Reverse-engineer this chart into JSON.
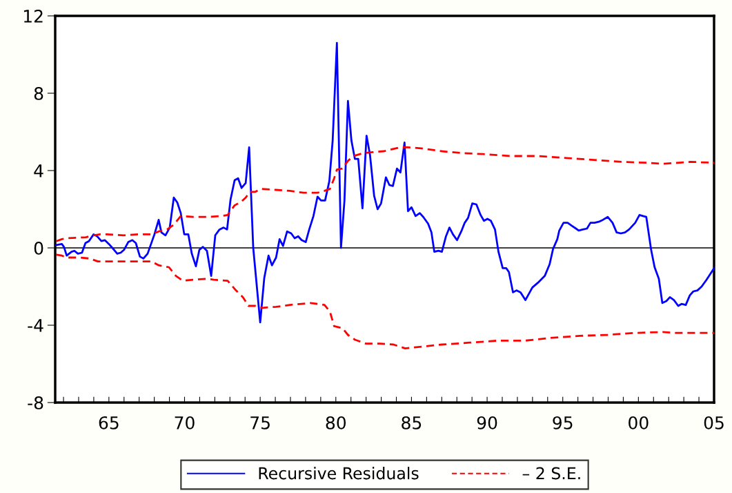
{
  "chart_data": {
    "type": "line",
    "xlim": [
      1961.45,
      2005.0
    ],
    "ylim": [
      -8,
      12
    ],
    "yticks": [
      {
        "value": -8,
        "label": "-8"
      },
      {
        "value": -4,
        "label": "-4"
      },
      0,
      4,
      8,
      12
    ],
    "xticks": [
      {
        "value": 1962,
        "label": null
      },
      {
        "value": 1963,
        "label": null
      },
      {
        "value": 1964,
        "label": null
      },
      {
        "value": 1965,
        "label": "65"
      },
      {
        "value": 1966,
        "label": null
      },
      {
        "value": 1967,
        "label": null
      },
      {
        "value": 1968,
        "label": null
      },
      {
        "value": 1969,
        "label": null
      },
      {
        "value": 1970,
        "label": "70"
      },
      {
        "value": 1971,
        "label": null
      },
      {
        "value": 1972,
        "label": null
      },
      {
        "value": 1973,
        "label": null
      },
      {
        "value": 1974,
        "label": null
      },
      {
        "value": 1975,
        "label": "75"
      },
      {
        "value": 1976,
        "label": null
      },
      {
        "value": 1977,
        "label": null
      },
      {
        "value": 1978,
        "label": null
      },
      {
        "value": 1979,
        "label": null
      },
      {
        "value": 1980,
        "label": "80"
      },
      {
        "value": 1981,
        "label": null
      },
      {
        "value": 1982,
        "label": null
      },
      {
        "value": 1983,
        "label": null
      },
      {
        "value": 1984,
        "label": null
      },
      {
        "value": 1985,
        "label": "85"
      },
      {
        "value": 1986,
        "label": null
      },
      {
        "value": 1987,
        "label": null
      },
      {
        "value": 1988,
        "label": null
      },
      {
        "value": 1989,
        "label": null
      },
      {
        "value": 1990,
        "label": "90"
      },
      {
        "value": 1991,
        "label": null
      },
      {
        "value": 1992,
        "label": null
      },
      {
        "value": 1993,
        "label": null
      },
      {
        "value": 1994,
        "label": null
      },
      {
        "value": 1995,
        "label": "95"
      },
      {
        "value": 1996,
        "label": null
      },
      {
        "value": 1997,
        "label": null
      },
      {
        "value": 1998,
        "label": null
      },
      {
        "value": 1999,
        "label": null
      },
      {
        "value": 2000,
        "label": "00"
      },
      {
        "value": 2001,
        "label": null
      },
      {
        "value": 2002,
        "label": null
      },
      {
        "value": 2003,
        "label": null
      },
      {
        "value": 2004,
        "label": null
      },
      {
        "value": 2005,
        "label": "05"
      }
    ],
    "grid": false,
    "legend": "bottom",
    "marker": "none",
    "ref_lines": [
      {
        "axis": "y",
        "value": 0,
        "color": "#000000",
        "line_style": "solid"
      }
    ],
    "series": [
      {
        "name": "Recursive Residuals",
        "color": "#0000ff",
        "line_style": "solid",
        "x": [
          1961.53,
          1961.89,
          1962.03,
          1962.21,
          1962.53,
          1962.72,
          1962.95,
          1963.22,
          1963.45,
          1963.68,
          1963.99,
          1964.22,
          1964.5,
          1964.73,
          1965.0,
          1965.23,
          1965.55,
          1965.78,
          1966.0,
          1966.28,
          1966.55,
          1966.78,
          1967.05,
          1967.28,
          1967.56,
          1968.01,
          1968.29,
          1968.47,
          1968.74,
          1969.02,
          1969.29,
          1969.52,
          1969.75,
          1969.98,
          1970.25,
          1970.48,
          1970.75,
          1970.98,
          1971.21,
          1971.48,
          1971.76,
          1972.03,
          1972.31,
          1972.58,
          1972.81,
          1973.04,
          1973.31,
          1973.54,
          1973.77,
          1974.04,
          1974.27,
          1974.54,
          1975.0,
          1975.27,
          1975.55,
          1975.78,
          1976.05,
          1976.28,
          1976.51,
          1976.78,
          1977.05,
          1977.28,
          1977.51,
          1977.74,
          1978.01,
          1978.24,
          1978.52,
          1978.79,
          1979.02,
          1979.29,
          1979.57,
          1979.79,
          1980.07,
          1980.34,
          1980.57,
          1980.8,
          1981.03,
          1981.26,
          1981.48,
          1981.76,
          1982.03,
          1982.26,
          1982.53,
          1982.76,
          1982.99,
          1983.31,
          1983.54,
          1983.77,
          1984.04,
          1984.27,
          1984.54,
          1984.77,
          1985.0,
          1985.27,
          1985.55,
          1985.78,
          1986.1,
          1986.32,
          1986.51,
          1986.78,
          1987.01,
          1987.28,
          1987.51,
          1987.74,
          1988.01,
          1988.29,
          1988.52,
          1988.74,
          1989.02,
          1989.29,
          1989.57,
          1989.79,
          1990.02,
          1990.25,
          1990.52,
          1990.75,
          1991.03,
          1991.26,
          1991.44,
          1991.71,
          1991.94,
          1992.21,
          1992.53,
          1992.99,
          1993.36,
          1993.81,
          1994.13,
          1994.36,
          1994.64,
          1994.77,
          1995.05,
          1995.32,
          1995.59,
          1995.87,
          1996.05,
          1996.32,
          1996.6,
          1996.83,
          1997.1,
          1997.38,
          1997.65,
          1997.97,
          1998.29,
          1998.56,
          1998.84,
          1999.11,
          1999.38,
          1999.79,
          2000.07,
          2000.3,
          2000.52,
          2000.84,
          2001.07,
          2001.35,
          2001.58,
          2001.85,
          2002.08,
          2002.35,
          2002.63,
          2002.85,
          2003.13,
          2003.4,
          2003.63,
          2003.9,
          2004.18,
          2004.5,
          2005.0
        ],
        "values": [
          0.15,
          0.2,
          0.05,
          -0.4,
          -0.2,
          -0.15,
          -0.3,
          -0.25,
          0.25,
          0.35,
          0.7,
          0.6,
          0.35,
          0.4,
          0.2,
          0,
          -0.3,
          -0.25,
          -0.1,
          0.3,
          0.4,
          0.25,
          -0.45,
          -0.55,
          -0.3,
          0.7,
          1.45,
          0.8,
          0.65,
          1.05,
          2.6,
          2.35,
          1.8,
          0.7,
          0.7,
          -0.3,
          -0.95,
          -0.1,
          0.05,
          -0.15,
          -1.45,
          0.65,
          0.95,
          1.05,
          0.95,
          2.5,
          3.5,
          3.6,
          3.1,
          3.35,
          5.2,
          0,
          -3.85,
          -1.55,
          -0.4,
          -0.9,
          -0.5,
          0.45,
          0.1,
          0.85,
          0.75,
          0.5,
          0.6,
          0.4,
          0.3,
          0.95,
          1.65,
          2.65,
          2.45,
          2.45,
          3.45,
          5.55,
          10.6,
          0,
          2.45,
          7.6,
          5.55,
          4.6,
          4.6,
          2.05,
          5.8,
          4.8,
          2.7,
          2.0,
          2.3,
          3.65,
          3.25,
          3.2,
          4.1,
          3.9,
          5.45,
          1.9,
          2.1,
          1.65,
          1.8,
          1.6,
          1.25,
          0.8,
          -0.2,
          -0.15,
          -0.2,
          0.6,
          1.05,
          0.7,
          0.4,
          0.85,
          1.3,
          1.55,
          2.3,
          2.25,
          1.7,
          1.4,
          1.5,
          1.4,
          0.95,
          -0.2,
          -1.05,
          -1.05,
          -1.25,
          -2.3,
          -2.2,
          -2.3,
          -2.7,
          -2.05,
          -1.8,
          -1.45,
          -0.85,
          -0.05,
          0.45,
          0.9,
          1.3,
          1.3,
          1.15,
          1.0,
          0.9,
          0.95,
          1.0,
          1.3,
          1.3,
          1.35,
          1.45,
          1.6,
          1.3,
          0.8,
          0.75,
          0.8,
          0.95,
          1.3,
          1.7,
          1.65,
          1.6,
          -0.1,
          -1.0,
          -1.6,
          -2.85,
          -2.75,
          -2.55,
          -2.7,
          -3.0,
          -2.9,
          -2.95,
          -2.45,
          -2.25,
          -2.2,
          -2.0,
          -1.65,
          -1.05
        ]
      },
      {
        "name": "– 2 S.E.",
        "color": "#ff0000",
        "line_style": "dashed",
        "x": [
          1961.53,
          1961.89,
          1962.21,
          1963.49,
          1963.99,
          1964.41,
          1964.86,
          1966.0,
          1966.92,
          1967.83,
          1968.29,
          1968.84,
          1969.29,
          1969.75,
          1970.57,
          1971.48,
          1972.4,
          1972.85,
          1973.31,
          1973.77,
          1974.04,
          1974.32,
          1974.68,
          1975.05,
          1976.05,
          1976.96,
          1977.88,
          1978.79,
          1979.25,
          1979.61,
          1979.89,
          1980.07,
          1980.43,
          1980.8,
          1981.16,
          1981.8,
          1982.44,
          1983.17,
          1984.27,
          1984.73,
          1985.64,
          1987.01,
          1988.38,
          1989.75,
          1991.58,
          1993.4,
          1995.23,
          1997.06,
          1998.88,
          2000.71,
          2001.62,
          2002.53,
          2003.45,
          2005.0
        ],
        "values": [
          0.35,
          0.45,
          0.5,
          0.55,
          0.65,
          0.7,
          0.7,
          0.65,
          0.7,
          0.7,
          0.85,
          0.95,
          1.2,
          1.65,
          1.6,
          1.6,
          1.65,
          1.7,
          2.2,
          2.4,
          2.6,
          2.9,
          2.9,
          3.05,
          3.0,
          2.95,
          2.85,
          2.85,
          2.95,
          3.05,
          3.6,
          4.05,
          4.1,
          4.5,
          4.75,
          4.9,
          4.95,
          5.0,
          5.2,
          5.2,
          5.15,
          5.0,
          4.9,
          4.85,
          4.75,
          4.75,
          4.65,
          4.55,
          4.45,
          4.4,
          4.35,
          4.4,
          4.45,
          4.4
        ]
      },
      {
        "color": "#ff0000",
        "line_style": "dashed",
        "x": [
          1961.53,
          1961.89,
          1962.21,
          1963.04,
          1963.72,
          1964.27,
          1964.86,
          1966.0,
          1966.92,
          1967.83,
          1968.29,
          1968.97,
          1969.43,
          1969.89,
          1970.57,
          1971.48,
          1971.94,
          1972.85,
          1973.4,
          1973.86,
          1974.22,
          1974.68,
          1975.14,
          1976.05,
          1976.96,
          1978.33,
          1979.25,
          1979.61,
          1979.89,
          1980.43,
          1980.8,
          1981.26,
          1981.99,
          1982.9,
          1983.81,
          1984.59,
          1985.18,
          1987.01,
          1988.84,
          1990.66,
          1992.49,
          1994.32,
          1996.14,
          1997.97,
          1999.79,
          2001.62,
          2002.53,
          2003.45,
          2005.0
        ],
        "values": [
          -0.35,
          -0.4,
          -0.5,
          -0.5,
          -0.55,
          -0.7,
          -0.7,
          -0.7,
          -0.7,
          -0.7,
          -0.9,
          -1.0,
          -1.45,
          -1.7,
          -1.65,
          -1.6,
          -1.65,
          -1.7,
          -2.2,
          -2.55,
          -3.0,
          -3.0,
          -3.1,
          -3.05,
          -2.95,
          -2.85,
          -2.95,
          -3.3,
          -4.05,
          -4.15,
          -4.5,
          -4.75,
          -4.95,
          -4.95,
          -5.0,
          -5.2,
          -5.15,
          -5.0,
          -4.9,
          -4.8,
          -4.8,
          -4.65,
          -4.55,
          -4.5,
          -4.4,
          -4.35,
          -4.4,
          -4.4,
          -4.4
        ]
      }
    ]
  }
}
